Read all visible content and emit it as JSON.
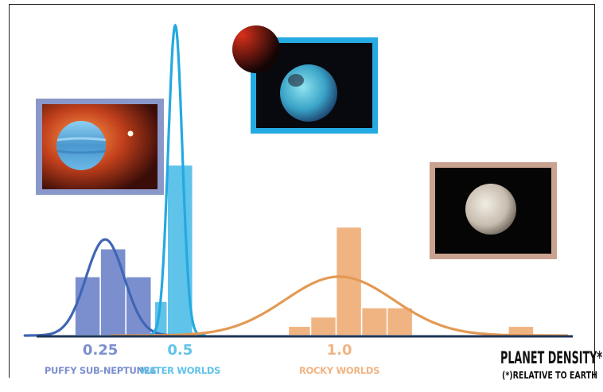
{
  "chart_data": {
    "type": "bar",
    "title": "",
    "xlabel": "PLANET DENSITY*",
    "xlabel_note": "(*)RELATIVE TO EARTH",
    "x_ticks": [
      {
        "value": 0.25,
        "label": "0.25"
      },
      {
        "value": 0.5,
        "label": "0.5"
      },
      {
        "value": 1.0,
        "label": "1.0"
      }
    ],
    "xlim": [
      0.0,
      1.75
    ],
    "ylim": [
      0,
      1.0
    ],
    "series": [
      {
        "name": "PUFFY SUB-NEPTUNES",
        "color": "#7b8fcf",
        "line_color": "#3f66b5",
        "label_x": 0.25,
        "bars": [
          {
            "x0": 0.17,
            "x1": 0.25,
            "y": 0.19
          },
          {
            "x0": 0.25,
            "x1": 0.33,
            "y": 0.28
          },
          {
            "x0": 0.33,
            "x1": 0.41,
            "y": 0.19
          }
        ],
        "curve": {
          "mean": 0.265,
          "sd": 0.06,
          "peak": 0.31
        }
      },
      {
        "name": "WATER WORLDS",
        "color": "#5fc3ea",
        "line_color": "#24a9e1",
        "label_x": 0.5,
        "bars": [
          {
            "x0": 0.42,
            "x1": 0.46,
            "y": 0.11
          },
          {
            "x0": 0.46,
            "x1": 0.54,
            "y": 0.55
          }
        ],
        "curve": {
          "mean": 0.485,
          "sd": 0.022,
          "peak": 1.0
        }
      },
      {
        "name": "ROCKY WORLDS",
        "color": "#f0b482",
        "line_color": "#e39a55",
        "label_x": 1.0,
        "bars": [
          {
            "x0": 0.84,
            "x1": 0.91,
            "y": 0.03
          },
          {
            "x0": 0.91,
            "x1": 0.99,
            "y": 0.06
          },
          {
            "x0": 0.99,
            "x1": 1.07,
            "y": 0.35
          },
          {
            "x0": 1.07,
            "x1": 1.15,
            "y": 0.09
          },
          {
            "x0": 1.15,
            "x1": 1.23,
            "y": 0.09
          },
          {
            "x0": 1.53,
            "x1": 1.61,
            "y": 0.03
          }
        ],
        "curve": {
          "mean": 1.0,
          "sd": 0.17,
          "peak": 0.19
        }
      }
    ],
    "grid": false,
    "legend": "none"
  },
  "images": [
    {
      "name": "sub-neptune-planet-image",
      "border_color": "#8a97c9"
    },
    {
      "name": "water-world-planet-image",
      "border_color": "#25aae1"
    },
    {
      "name": "rocky-planet-image",
      "border_color": "#c9a38f"
    }
  ]
}
